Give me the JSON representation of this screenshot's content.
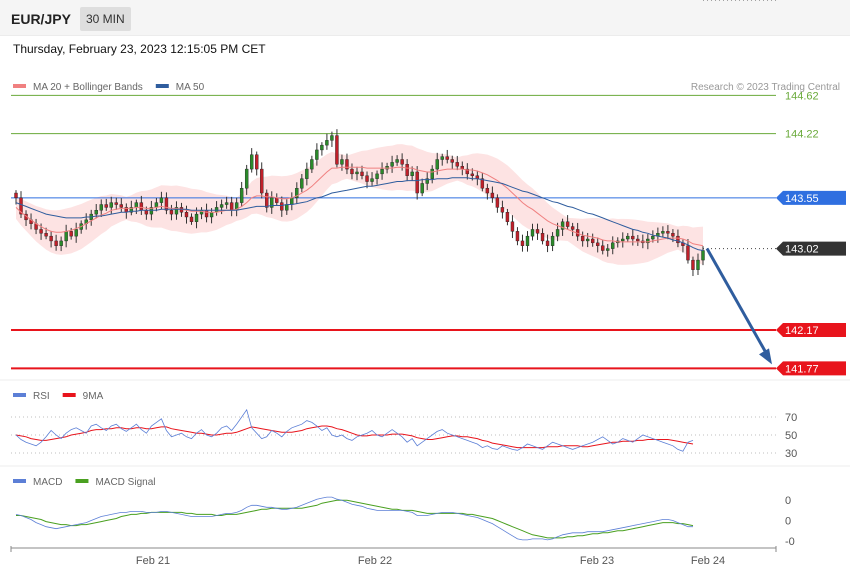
{
  "header": {
    "pair": "EUR/JPY",
    "timeframe": "30 MIN"
  },
  "date": "Thursday, February 23, 2023 12:15:05 PM CET",
  "copyright": "Research © 2023 Trading Central",
  "colors": {
    "bollinger": "#f08080",
    "band_fill": "#fde3e3",
    "ma50": "#2f5d9e",
    "up": "#2a8a2a",
    "down": "#c0202a",
    "resistance": "#6aaa3a",
    "pivot": "#2f6fe0",
    "support": "#e8141c",
    "current": "#333333",
    "rsi": "#5c7fd6",
    "rsi_ma": "#e8141c",
    "macd": "#5c7fd6",
    "macd_signal": "#4aa020"
  },
  "chart_data": [
    {
      "type": "candlestick",
      "legend": [
        {
          "name": "MA 20 + Bollinger Bands",
          "color": "#f08080"
        },
        {
          "name": "MA 50",
          "color": "#2f5d9e"
        }
      ],
      "x_labels": [
        "Feb 21",
        "Feb 22",
        "Feb 23",
        "Feb 24"
      ],
      "ylim": [
        141.69,
        144.78
      ],
      "levels": [
        {
          "value": 144.62,
          "label": "144.62",
          "kind": "resistance"
        },
        {
          "value": 144.22,
          "label": "144.22",
          "kind": "resistance"
        },
        {
          "value": 143.55,
          "label": "143.55",
          "kind": "pivot"
        },
        {
          "value": 143.02,
          "label": "143.02",
          "kind": "current"
        },
        {
          "value": 142.17,
          "label": "142.17",
          "kind": "support"
        },
        {
          "value": 141.77,
          "label": "141.77",
          "kind": "support"
        }
      ],
      "forecast_target": 141.77,
      "closes": [
        143.55,
        143.38,
        143.32,
        143.28,
        143.22,
        143.18,
        143.15,
        143.1,
        143.05,
        143.1,
        143.2,
        143.15,
        143.22,
        143.28,
        143.32,
        143.38,
        143.42,
        143.48,
        143.45,
        143.5,
        143.48,
        143.45,
        143.4,
        143.45,
        143.5,
        143.42,
        143.38,
        143.45,
        143.5,
        143.55,
        143.42,
        143.38,
        143.45,
        143.4,
        143.35,
        143.3,
        143.38,
        143.42,
        143.35,
        143.4,
        143.45,
        143.48,
        143.5,
        143.42,
        143.5,
        143.65,
        143.85,
        144.0,
        143.85,
        143.6,
        143.45,
        143.55,
        143.5,
        143.42,
        143.48,
        143.55,
        143.65,
        143.75,
        143.85,
        143.95,
        144.05,
        144.1,
        144.15,
        144.2,
        143.9,
        143.95,
        143.85,
        143.8,
        143.82,
        143.78,
        143.72,
        143.75,
        143.8,
        143.85,
        143.88,
        143.92,
        143.95,
        143.9,
        143.78,
        143.82,
        143.6,
        143.7,
        143.75,
        143.85,
        143.95,
        143.98,
        143.95,
        143.92,
        143.88,
        143.85,
        143.8,
        143.78,
        143.75,
        143.65,
        143.6,
        143.55,
        143.45,
        143.4,
        143.3,
        143.2,
        143.1,
        143.05,
        143.15,
        143.22,
        143.18,
        143.1,
        143.05,
        143.15,
        143.22,
        143.3,
        143.25,
        143.22,
        143.15,
        143.1,
        143.12,
        143.08,
        143.05,
        143.0,
        143.02,
        143.08,
        143.1,
        143.12,
        143.15,
        143.12,
        143.1,
        143.08,
        143.12,
        143.15,
        143.18,
        143.2,
        143.18,
        143.15,
        143.08,
        143.05,
        142.9,
        142.8,
        142.9,
        143.0
      ],
      "ma20": [
        143.45,
        143.4,
        143.36,
        143.32,
        143.28,
        143.25,
        143.22,
        143.2,
        143.19,
        143.19,
        143.2,
        143.21,
        143.23,
        143.25,
        143.28,
        143.31,
        143.34,
        143.37,
        143.39,
        143.42,
        143.43,
        143.44,
        143.44,
        143.44,
        143.45,
        143.45,
        143.44,
        143.44,
        143.45,
        143.46,
        143.45,
        143.44,
        143.44,
        143.43,
        143.42,
        143.41,
        143.41,
        143.41,
        143.4,
        143.4,
        143.4,
        143.41,
        143.42,
        143.42,
        143.43,
        143.46,
        143.5,
        143.55,
        143.57,
        143.57,
        143.56,
        143.56,
        143.55,
        143.54,
        143.54,
        143.55,
        143.57,
        143.6,
        143.63,
        143.67,
        143.72,
        143.77,
        143.82,
        143.86,
        143.86,
        143.87,
        143.87,
        143.87,
        143.87,
        143.87,
        143.86,
        143.86,
        143.86,
        143.86,
        143.86,
        143.86,
        143.87,
        143.87,
        143.86,
        143.86,
        143.84,
        143.83,
        143.82,
        143.82,
        143.83,
        143.84,
        143.85,
        143.85,
        143.85,
        143.85,
        143.84,
        143.84,
        143.83,
        143.81,
        143.79,
        143.76,
        143.73,
        143.69,
        143.65,
        143.6,
        143.55,
        143.5,
        143.46,
        143.43,
        143.39,
        143.35,
        143.31,
        143.28,
        143.26,
        143.24,
        143.22,
        143.2,
        143.18,
        143.16,
        143.15,
        143.14,
        143.13,
        143.11,
        143.1,
        143.1,
        143.09,
        143.09,
        143.09,
        143.09,
        143.09,
        143.09,
        143.09,
        143.1,
        143.11,
        143.12,
        143.13,
        143.13,
        143.13,
        143.12,
        143.1,
        143.07,
        143.06,
        143.05
      ],
      "ma50": [
        143.5,
        143.48,
        143.46,
        143.44,
        143.42,
        143.4,
        143.38,
        143.37,
        143.36,
        143.35,
        143.34,
        143.34,
        143.34,
        143.34,
        143.35,
        143.35,
        143.36,
        143.36,
        143.37,
        143.38,
        143.39,
        143.4,
        143.4,
        143.41,
        143.41,
        143.42,
        143.42,
        143.42,
        143.42,
        143.43,
        143.43,
        143.43,
        143.43,
        143.43,
        143.43,
        143.42,
        143.42,
        143.42,
        143.42,
        143.42,
        143.42,
        143.42,
        143.42,
        143.42,
        143.42,
        143.43,
        143.44,
        143.45,
        143.46,
        143.46,
        143.46,
        143.47,
        143.47,
        143.47,
        143.48,
        143.48,
        143.49,
        143.5,
        143.51,
        143.53,
        143.55,
        143.56,
        143.58,
        143.6,
        143.61,
        143.62,
        143.63,
        143.64,
        143.65,
        143.66,
        143.67,
        143.67,
        143.68,
        143.69,
        143.7,
        143.71,
        143.72,
        143.72,
        143.73,
        143.73,
        143.73,
        143.74,
        143.74,
        143.74,
        143.75,
        143.75,
        143.75,
        143.76,
        143.76,
        143.76,
        143.76,
        143.75,
        143.75,
        143.74,
        143.73,
        143.72,
        143.71,
        143.7,
        143.68,
        143.66,
        143.64,
        143.62,
        143.61,
        143.59,
        143.57,
        143.55,
        143.53,
        143.51,
        143.5,
        143.48,
        143.46,
        143.45,
        143.43,
        143.41,
        143.39,
        143.38,
        143.36,
        143.34,
        143.32,
        143.3,
        143.28,
        143.26,
        143.24,
        143.22,
        143.21,
        143.19,
        143.18,
        143.16,
        143.15,
        143.14,
        143.13,
        143.11,
        143.1,
        143.08,
        143.06,
        143.03,
        143.01,
        143.0
      ]
    },
    {
      "type": "line",
      "legend": [
        {
          "name": "RSI",
          "color": "#5c7fd6"
        },
        {
          "name": "9MA",
          "color": "#e8141c"
        }
      ],
      "y_labels": [
        "70",
        "50",
        "30"
      ],
      "ylim": [
        20,
        80
      ],
      "reference_levels": [
        70,
        50,
        30
      ],
      "rsi": [
        50,
        45,
        42,
        40,
        38,
        42,
        48,
        55,
        50,
        46,
        52,
        56,
        58,
        55,
        52,
        60,
        62,
        58,
        55,
        60,
        62,
        57,
        54,
        58,
        62,
        56,
        52,
        60,
        64,
        68,
        55,
        48,
        50,
        52,
        48,
        46,
        52,
        56,
        50,
        48,
        52,
        58,
        60,
        55,
        62,
        70,
        78,
        58,
        52,
        46,
        48,
        55,
        52,
        48,
        54,
        58,
        60,
        62,
        66,
        64,
        60,
        55,
        58,
        50,
        48,
        50,
        46,
        44,
        48,
        50,
        52,
        55,
        50,
        48,
        52,
        56,
        52,
        48,
        42,
        46,
        38,
        42,
        46,
        50,
        54,
        56,
        52,
        50,
        48,
        46,
        44,
        42,
        40,
        36,
        38,
        35,
        34,
        38,
        36,
        34,
        33,
        36,
        40,
        38,
        36,
        34,
        38,
        42,
        40,
        38,
        36,
        34,
        36,
        38,
        40,
        42,
        45,
        48,
        44,
        40,
        42,
        46,
        44,
        42,
        46,
        50,
        48,
        46,
        44,
        42,
        40,
        38,
        34,
        32,
        42,
        44
      ],
      "rsi_ma": [
        50,
        49,
        48,
        46,
        45,
        44,
        44,
        45,
        46,
        47,
        48,
        50,
        51,
        52,
        53,
        55,
        56,
        56,
        57,
        57,
        58,
        58,
        57,
        57,
        58,
        58,
        57,
        57,
        58,
        59,
        59,
        57,
        56,
        55,
        54,
        53,
        52,
        52,
        51,
        50,
        50,
        51,
        52,
        52,
        53,
        55,
        57,
        59,
        58,
        57,
        56,
        55,
        54,
        53,
        53,
        53,
        54,
        55,
        57,
        58,
        59,
        60,
        60,
        59,
        57,
        56,
        54,
        52,
        50,
        49,
        49,
        50,
        50,
        50,
        50,
        51,
        51,
        51,
        50,
        49,
        47,
        46,
        45,
        45,
        46,
        47,
        48,
        49,
        49,
        48,
        48,
        47,
        46,
        44,
        43,
        41,
        40,
        39,
        38,
        37,
        36,
        36,
        36,
        36,
        36,
        36,
        37,
        37,
        37,
        38,
        38,
        38,
        38,
        37,
        37,
        38,
        39,
        40,
        41,
        42,
        42,
        43,
        43,
        43,
        44,
        44,
        45,
        45,
        45,
        45,
        45,
        44,
        43,
        42,
        41,
        40
      ],
      "x_dotted_from_index": 136
    },
    {
      "type": "line",
      "legend": [
        {
          "name": "MACD",
          "color": "#5c7fd6"
        },
        {
          "name": "MACD Signal",
          "color": "#4aa020"
        }
      ],
      "y_labels": [
        "0",
        "0",
        "-0"
      ],
      "ylim": [
        -0.25,
        0.3
      ],
      "macd": [
        0.06,
        0.05,
        0.03,
        0.01,
        -0.02,
        -0.04,
        -0.06,
        -0.07,
        -0.08,
        -0.07,
        -0.06,
        -0.05,
        -0.04,
        -0.03,
        -0.02,
        0.0,
        0.02,
        0.04,
        0.05,
        0.06,
        0.07,
        0.08,
        0.08,
        0.09,
        0.09,
        0.09,
        0.08,
        0.08,
        0.08,
        0.09,
        0.09,
        0.08,
        0.07,
        0.06,
        0.05,
        0.04,
        0.04,
        0.04,
        0.04,
        0.04,
        0.05,
        0.06,
        0.07,
        0.07,
        0.08,
        0.1,
        0.13,
        0.15,
        0.15,
        0.14,
        0.13,
        0.13,
        0.12,
        0.11,
        0.11,
        0.12,
        0.13,
        0.15,
        0.17,
        0.19,
        0.21,
        0.22,
        0.23,
        0.23,
        0.21,
        0.2,
        0.18,
        0.16,
        0.15,
        0.14,
        0.12,
        0.11,
        0.1,
        0.1,
        0.1,
        0.1,
        0.1,
        0.1,
        0.09,
        0.08,
        0.05,
        0.05,
        0.05,
        0.06,
        0.07,
        0.08,
        0.08,
        0.08,
        0.07,
        0.06,
        0.05,
        0.04,
        0.03,
        0.01,
        -0.01,
        -0.03,
        -0.06,
        -0.09,
        -0.12,
        -0.15,
        -0.18,
        -0.19,
        -0.19,
        -0.18,
        -0.18,
        -0.18,
        -0.19,
        -0.18,
        -0.16,
        -0.14,
        -0.13,
        -0.12,
        -0.12,
        -0.12,
        -0.11,
        -0.11,
        -0.11,
        -0.11,
        -0.1,
        -0.09,
        -0.08,
        -0.07,
        -0.06,
        -0.05,
        -0.04,
        -0.03,
        -0.02,
        -0.01,
        0.0,
        0.01,
        0.01,
        0.0,
        -0.02,
        -0.04,
        -0.06,
        -0.06
      ],
      "signal": [
        0.05,
        0.05,
        0.04,
        0.03,
        0.02,
        0.01,
        -0.01,
        -0.02,
        -0.03,
        -0.04,
        -0.04,
        -0.05,
        -0.05,
        -0.04,
        -0.04,
        -0.03,
        -0.02,
        -0.01,
        0.0,
        0.01,
        0.02,
        0.04,
        0.05,
        0.06,
        0.06,
        0.07,
        0.07,
        0.08,
        0.08,
        0.08,
        0.08,
        0.08,
        0.08,
        0.08,
        0.07,
        0.07,
        0.06,
        0.06,
        0.06,
        0.06,
        0.05,
        0.05,
        0.06,
        0.06,
        0.06,
        0.07,
        0.08,
        0.09,
        0.1,
        0.11,
        0.11,
        0.12,
        0.12,
        0.12,
        0.12,
        0.12,
        0.12,
        0.12,
        0.13,
        0.14,
        0.15,
        0.17,
        0.18,
        0.19,
        0.2,
        0.2,
        0.2,
        0.19,
        0.18,
        0.17,
        0.16,
        0.15,
        0.14,
        0.13,
        0.12,
        0.11,
        0.11,
        0.1,
        0.1,
        0.1,
        0.09,
        0.08,
        0.07,
        0.07,
        0.07,
        0.07,
        0.07,
        0.07,
        0.07,
        0.07,
        0.06,
        0.06,
        0.05,
        0.04,
        0.03,
        0.02,
        0.0,
        -0.02,
        -0.04,
        -0.06,
        -0.08,
        -0.1,
        -0.12,
        -0.14,
        -0.15,
        -0.16,
        -0.17,
        -0.17,
        -0.17,
        -0.17,
        -0.16,
        -0.16,
        -0.15,
        -0.15,
        -0.14,
        -0.13,
        -0.13,
        -0.12,
        -0.12,
        -0.11,
        -0.1,
        -0.1,
        -0.09,
        -0.08,
        -0.07,
        -0.06,
        -0.05,
        -0.04,
        -0.03,
        -0.02,
        -0.02,
        -0.02,
        -0.03,
        -0.03,
        -0.04,
        -0.05
      ]
    }
  ]
}
